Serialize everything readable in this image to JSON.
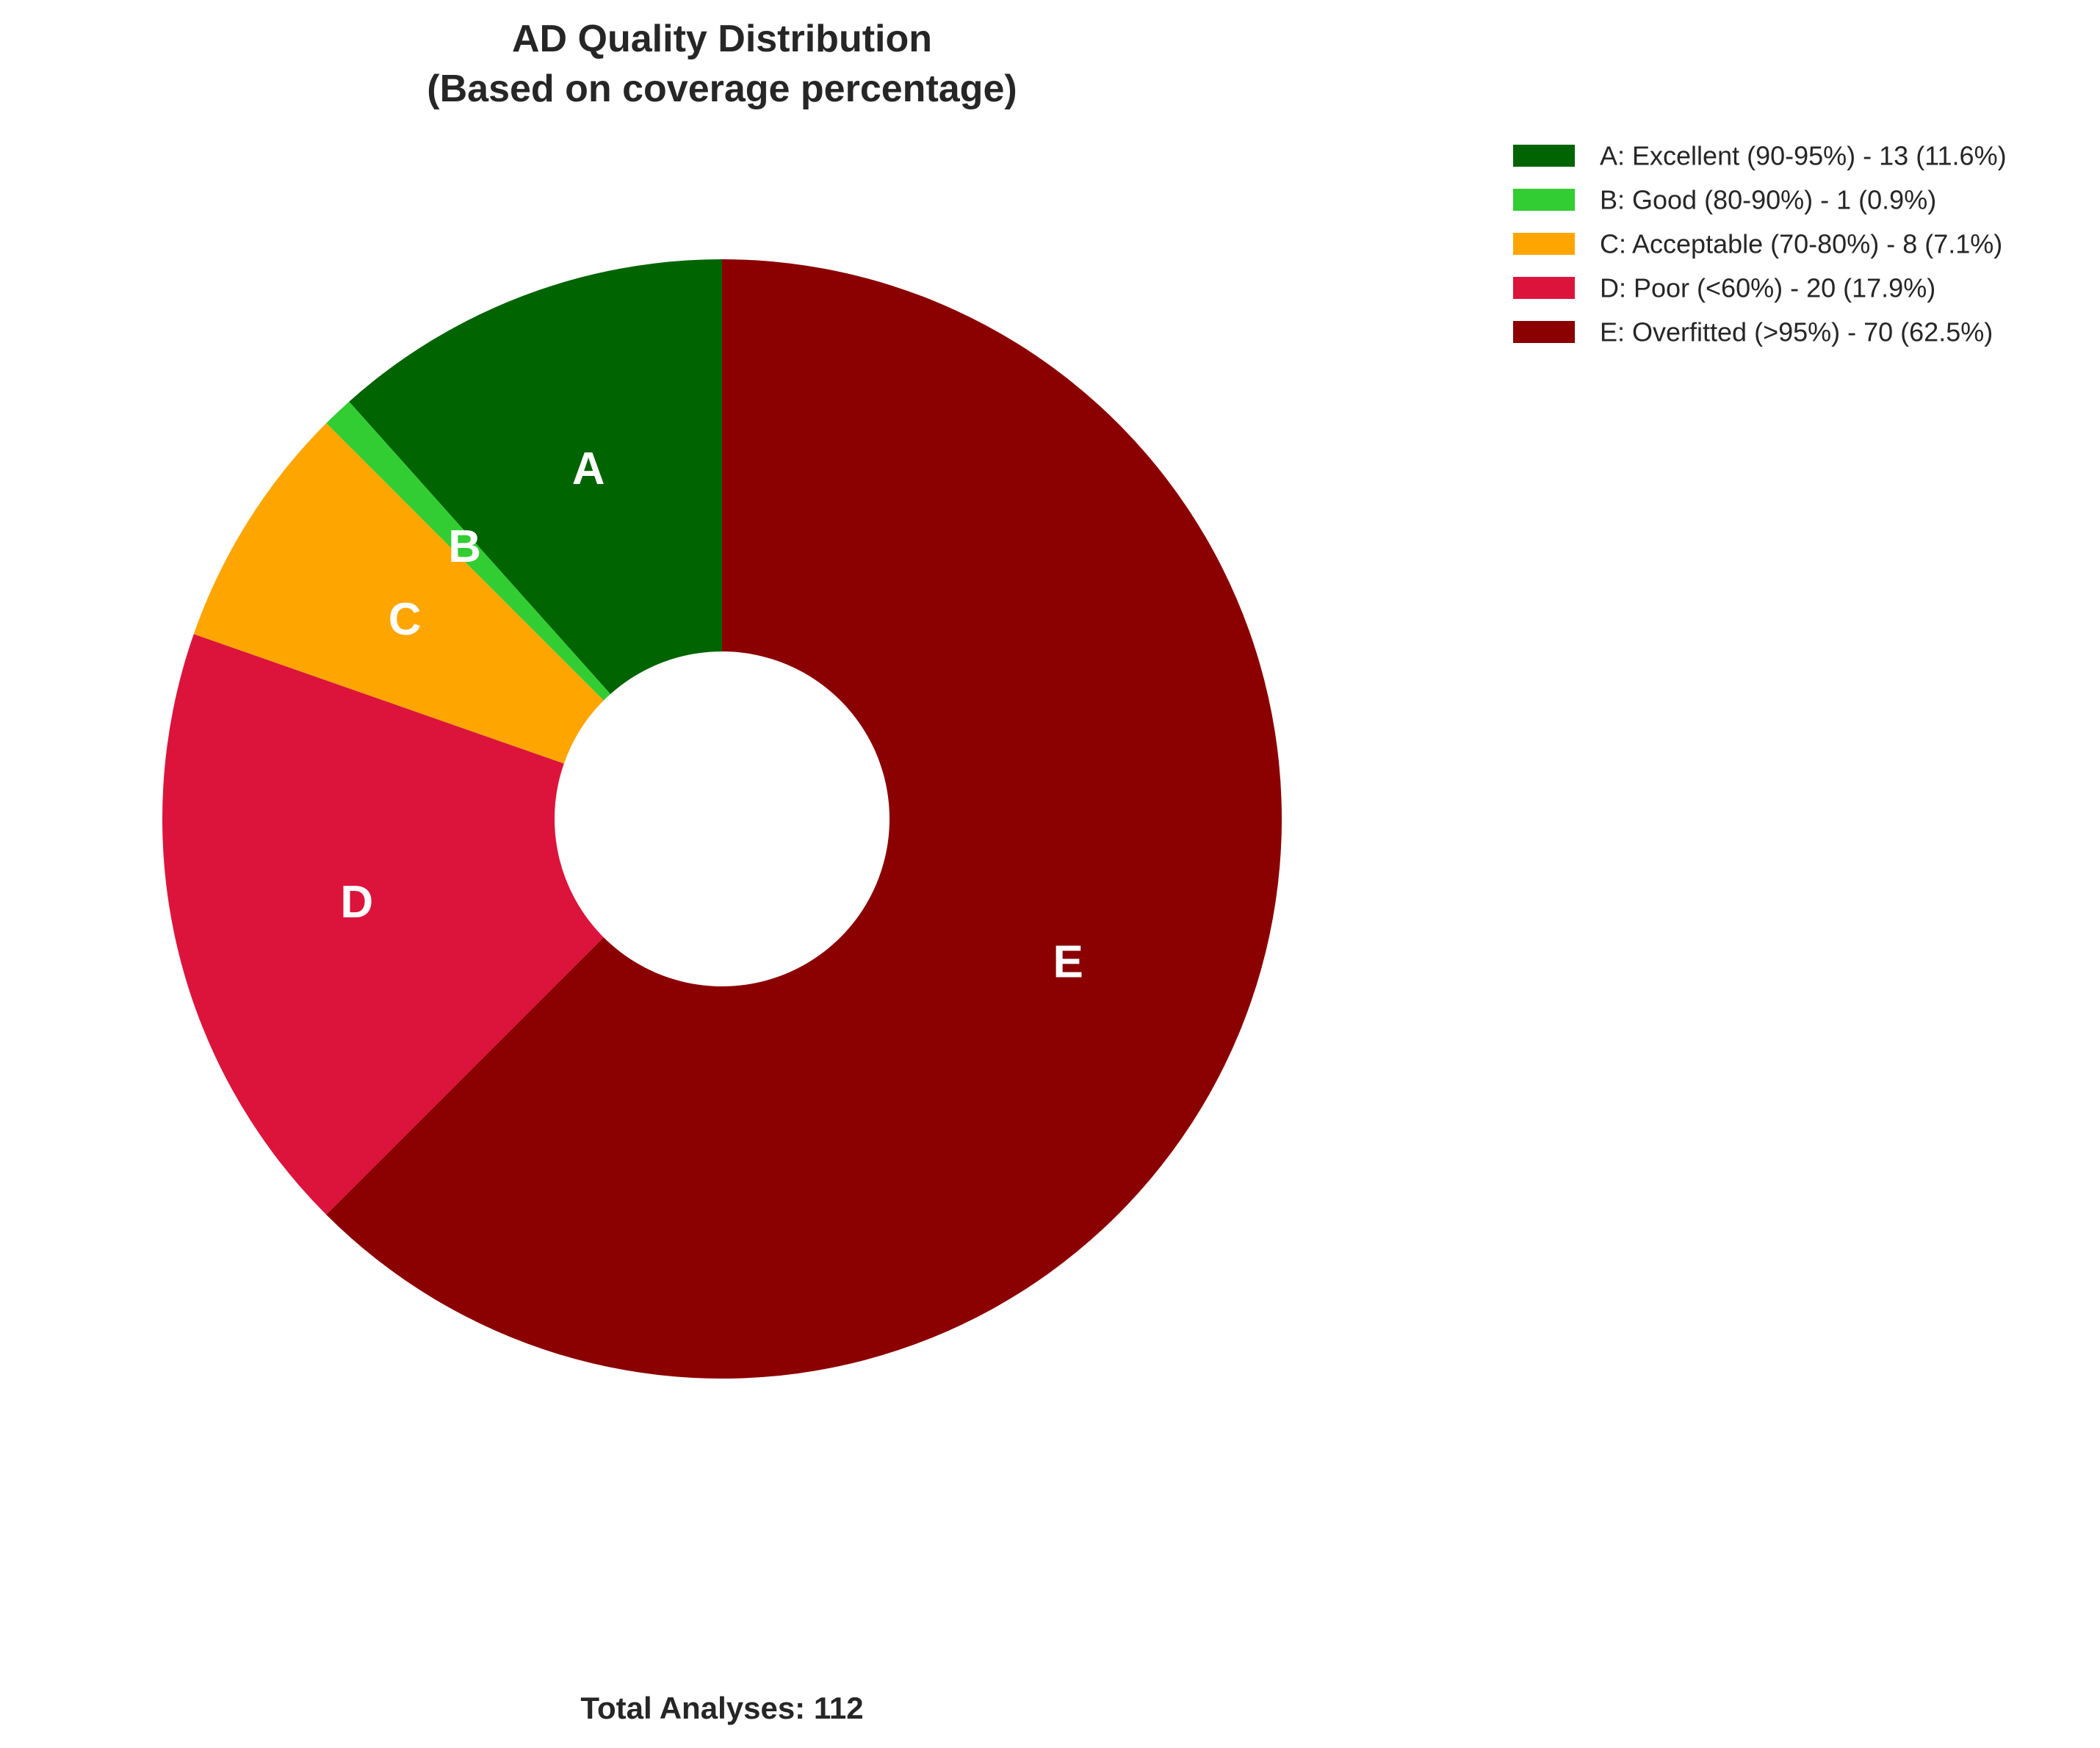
{
  "chart_data": {
    "type": "pie",
    "title": "AD Quality Distribution",
    "subtitle": "(Based on coverage percentage)",
    "categories": [
      "A",
      "B",
      "C",
      "D",
      "E"
    ],
    "values": [
      13,
      1,
      8,
      20,
      70
    ],
    "percentages": [
      11.6,
      0.9,
      7.1,
      17.9,
      62.5
    ],
    "colors": [
      "#006400",
      "#32cd32",
      "#ffa500",
      "#dc143c",
      "#8b0000"
    ],
    "legend": [
      "A: Excellent (90-95%) - 13 (11.6%)",
      "B: Good (80-90%) - 1 (0.9%)",
      "C: Acceptable (70-80%) - 8 (7.1%)",
      "D: Poor (<60%) - 20 (17.9%)",
      "E: Overfitted (>95%) - 70 (62.5%)"
    ],
    "legend_position": "top-right",
    "start": "top",
    "direction": "counterclockwise",
    "donut": true
  },
  "footer": {
    "total_label": "Total Analyses: 112"
  }
}
